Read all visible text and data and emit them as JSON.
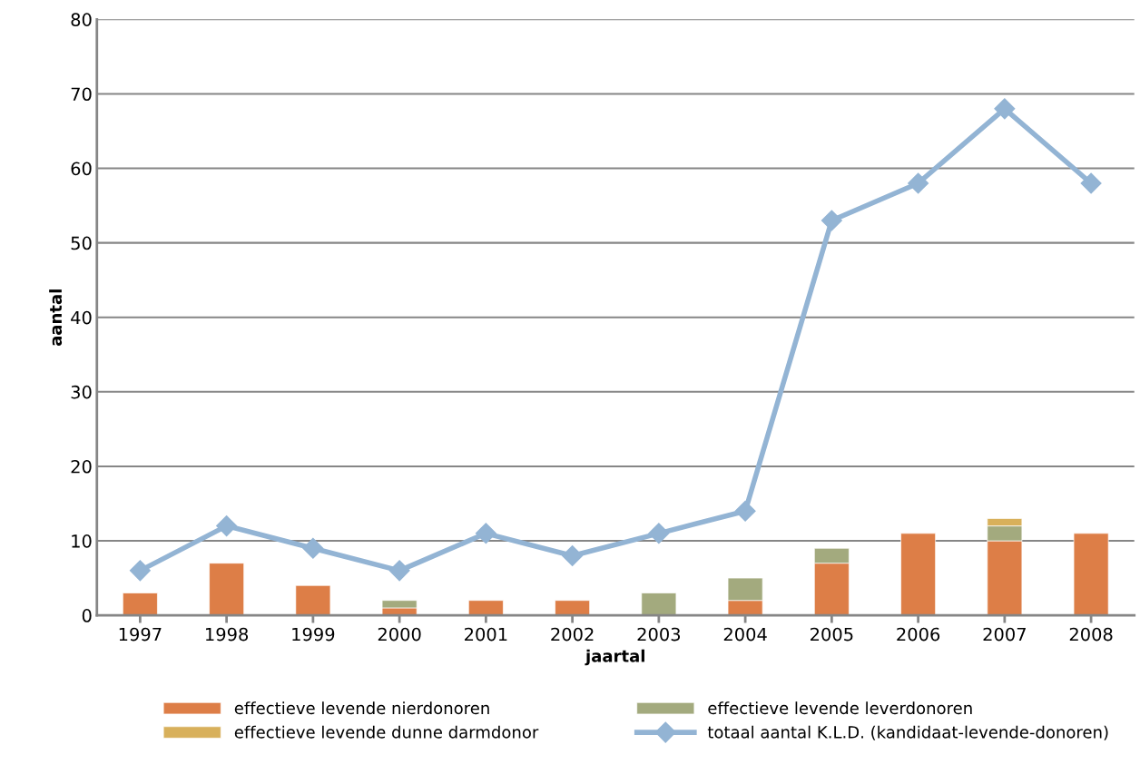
{
  "chart_data": {
    "type": "bar",
    "stacked": true,
    "xlabel": "jaartal",
    "ylabel": "aantal",
    "categories": [
      "1997",
      "1998",
      "1999",
      "2000",
      "2001",
      "2002",
      "2003",
      "2004",
      "2005",
      "2006",
      "2007",
      "2008"
    ],
    "series": [
      {
        "name": "effectieve levende nierdonoren",
        "color": "#dd7e47",
        "values": [
          3,
          7,
          4,
          1,
          2,
          2,
          null,
          2,
          7,
          11,
          10,
          11
        ]
      },
      {
        "name": "effectieve levende leverdonoren",
        "color": "#a3aa7e",
        "values": [
          null,
          null,
          null,
          1,
          null,
          null,
          3,
          3,
          2,
          null,
          2,
          null
        ]
      },
      {
        "name": "effectieve levende dunne darmdonor",
        "color": "#d8b05b",
        "values": [
          null,
          null,
          null,
          null,
          null,
          null,
          null,
          null,
          null,
          null,
          1,
          null
        ]
      },
      {
        "name": "totaal aantal K.L.D. (kandidaat-levende-donoren)",
        "type": "line",
        "color": "#93b4d4",
        "marker": "diamond",
        "values": [
          6,
          12,
          9,
          6,
          11,
          8,
          11,
          14,
          53,
          58,
          68,
          58
        ]
      }
    ],
    "ylim": [
      0,
      80
    ],
    "yticks": [
      0,
      10,
      20,
      30,
      40,
      50,
      60,
      70,
      80
    ],
    "grid": "y",
    "legend": "bottom"
  }
}
